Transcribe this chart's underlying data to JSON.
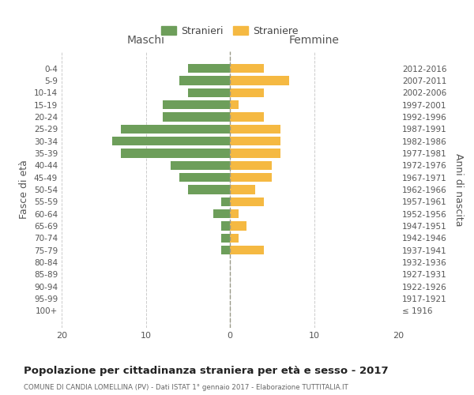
{
  "age_groups": [
    "0-4",
    "5-9",
    "10-14",
    "15-19",
    "20-24",
    "25-29",
    "30-34",
    "35-39",
    "40-44",
    "45-49",
    "50-54",
    "55-59",
    "60-64",
    "65-69",
    "70-74",
    "75-79",
    "80-84",
    "85-89",
    "90-94",
    "95-99",
    "100+"
  ],
  "birth_years": [
    "2012-2016",
    "2007-2011",
    "2002-2006",
    "1997-2001",
    "1992-1996",
    "1987-1991",
    "1982-1986",
    "1977-1981",
    "1972-1976",
    "1967-1971",
    "1962-1966",
    "1957-1961",
    "1952-1956",
    "1947-1951",
    "1942-1946",
    "1937-1941",
    "1932-1936",
    "1927-1931",
    "1922-1926",
    "1917-1921",
    "≤ 1916"
  ],
  "males": [
    5,
    6,
    5,
    8,
    8,
    13,
    14,
    13,
    7,
    6,
    5,
    1,
    2,
    1,
    1,
    1,
    0,
    0,
    0,
    0,
    0
  ],
  "females": [
    4,
    7,
    4,
    1,
    4,
    6,
    6,
    6,
    5,
    5,
    3,
    4,
    1,
    2,
    1,
    4,
    0,
    0,
    0,
    0,
    0
  ],
  "male_color": "#6d9e5a",
  "female_color": "#f5b942",
  "background_color": "#ffffff",
  "grid_color": "#cccccc",
  "title": "Popolazione per cittadinanza straniera per età e sesso - 2017",
  "subtitle": "COMUNE DI CANDIA LOMELLINA (PV) - Dati ISTAT 1° gennaio 2017 - Elaborazione TUTTITALIA.IT",
  "xlabel_left": "Maschi",
  "xlabel_right": "Femmine",
  "ylabel_left": "Fasce di età",
  "ylabel_right": "Anni di nascita",
  "legend_male": "Stranieri",
  "legend_female": "Straniere",
  "xlim": 20,
  "bar_height": 0.75
}
